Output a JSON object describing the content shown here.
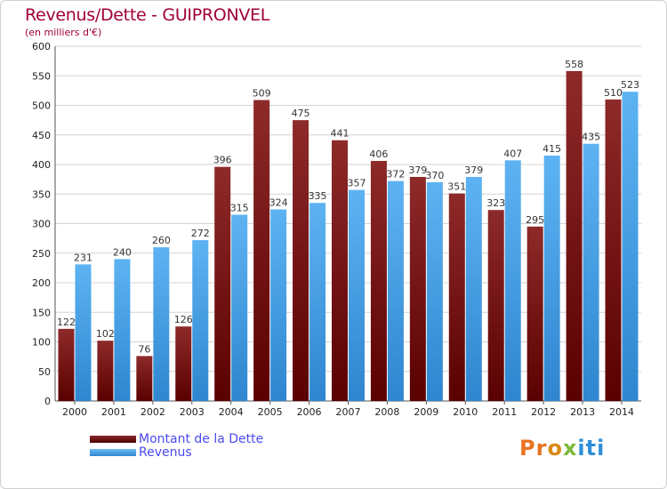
{
  "header": {
    "title": "Revenus/Dette - GUIPRONVEL",
    "subtitle": "(en milliers d'€)"
  },
  "colors": {
    "dette": "#7a1c1c",
    "revenus": "#4fa3e6",
    "title": "#a0003a",
    "legend_text": "#4a4af0"
  },
  "legend": {
    "items": [
      {
        "label": "Montant de la Dette",
        "color": "#7a1c1c"
      },
      {
        "label": "Revenus",
        "color": "#4fa3e6"
      }
    ]
  },
  "logo": {
    "text": "Proxiti",
    "letter_colors": [
      "#e9731f",
      "#e9731f",
      "#d98a15",
      "#7cb83a",
      "#2f8fd8",
      "#2f8fd8",
      "#2f8fd8"
    ]
  },
  "chart_data": {
    "type": "bar",
    "categories": [
      "2000",
      "2001",
      "2002",
      "2003",
      "2004",
      "2005",
      "2006",
      "2007",
      "2008",
      "2009",
      "2010",
      "2011",
      "2012",
      "2013",
      "2014"
    ],
    "series": [
      {
        "name": "Montant de la Dette",
        "values": [
          122,
          102,
          76,
          126,
          396,
          509,
          475,
          441,
          406,
          379,
          351,
          323,
          295,
          558,
          510
        ]
      },
      {
        "name": "Revenus",
        "values": [
          231,
          240,
          260,
          272,
          315,
          324,
          335,
          357,
          372,
          370,
          379,
          407,
          415,
          435,
          523
        ]
      }
    ],
    "ylim": [
      0,
      600
    ],
    "yticks": [
      "0",
      "50",
      "100",
      "150",
      "200",
      "250",
      "300",
      "350",
      "400",
      "450",
      "500",
      "550",
      "600"
    ],
    "grid": true,
    "legend_position": "bottom-left"
  }
}
